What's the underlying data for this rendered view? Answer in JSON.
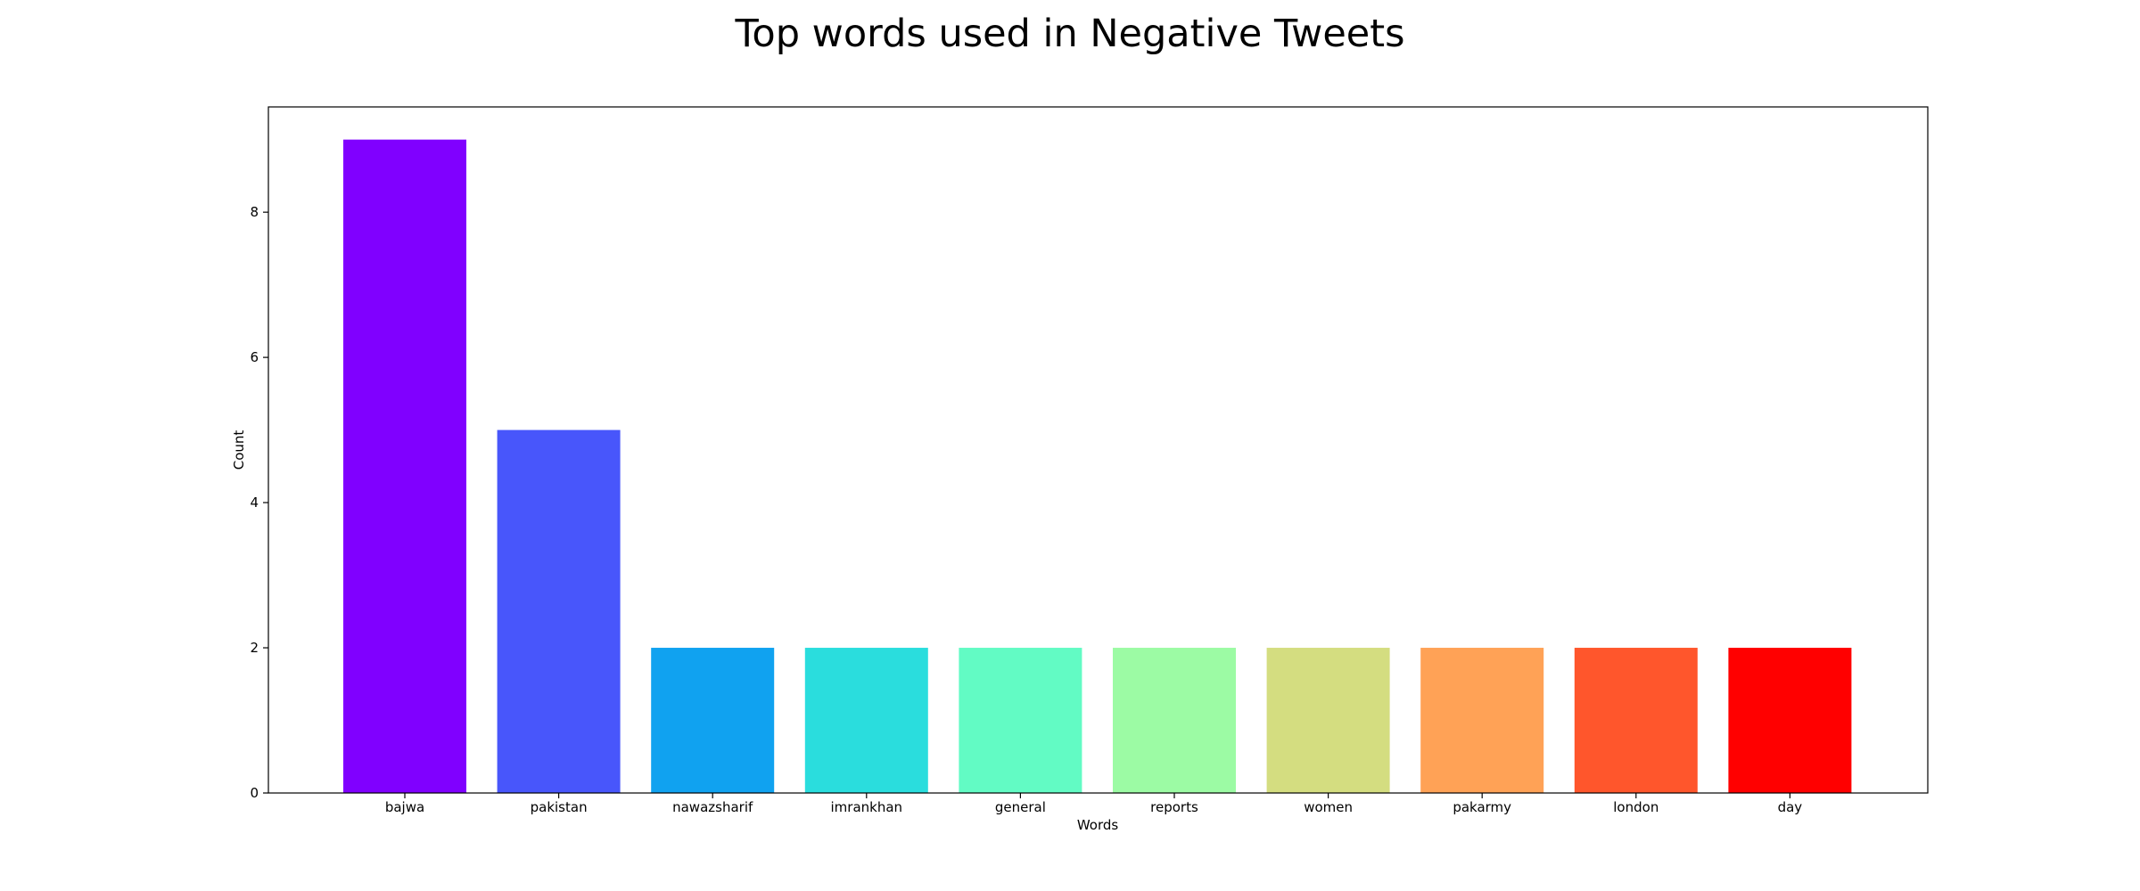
{
  "chart_data": {
    "type": "bar",
    "title": "Top words used in Negative Tweets",
    "xlabel": "Words",
    "ylabel": "Count",
    "categories": [
      "bajwa",
      "pakistan",
      "nawazsharif",
      "imrankhan",
      "general",
      "reports",
      "women",
      "pakarmy",
      "london",
      "day"
    ],
    "values": [
      9,
      5,
      2,
      2,
      2,
      2,
      2,
      2,
      2,
      2
    ],
    "colors": [
      "#8000ff",
      "#4856fb",
      "#10a2f0",
      "#2adddd",
      "#62fbc4",
      "#9cfba4",
      "#d4dd80",
      "#ffa256",
      "#ff562c",
      "#ff0000"
    ],
    "ylim": [
      0,
      9.45
    ],
    "yticks": [
      0,
      2,
      4,
      6,
      8
    ],
    "grid": false,
    "legend": "none"
  }
}
